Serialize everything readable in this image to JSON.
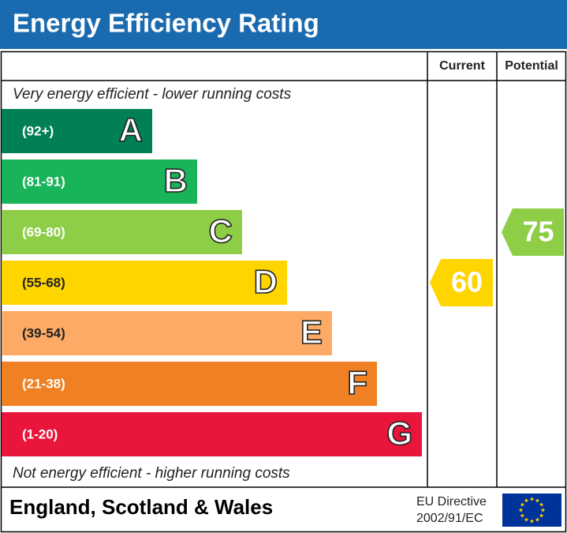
{
  "header": {
    "title": "Energy Efficiency Rating"
  },
  "columns": {
    "current": "Current",
    "potential": "Potential"
  },
  "top_note": "Very energy efficient - lower running costs",
  "bottom_note": "Not energy efficient - higher running costs",
  "bands": [
    {
      "range": "(92+)",
      "letter": "A",
      "color": "#008054"
    },
    {
      "range": "(81-91)",
      "letter": "B",
      "color": "#19b459"
    },
    {
      "range": "(69-80)",
      "letter": "C",
      "color": "#8dce46"
    },
    {
      "range": "(55-68)",
      "letter": "D",
      "color": "#ffd500"
    },
    {
      "range": "(39-54)",
      "letter": "E",
      "color": "#fcaa65"
    },
    {
      "range": "(21-38)",
      "letter": "F",
      "color": "#ef8023"
    },
    {
      "range": "(1-20)",
      "letter": "G",
      "color": "#e9153b"
    }
  ],
  "current": 60,
  "potential": 75,
  "footer": {
    "region": "England, Scotland & Wales",
    "directive_line1": "EU Directive",
    "directive_line2": "2002/91/EC"
  }
}
